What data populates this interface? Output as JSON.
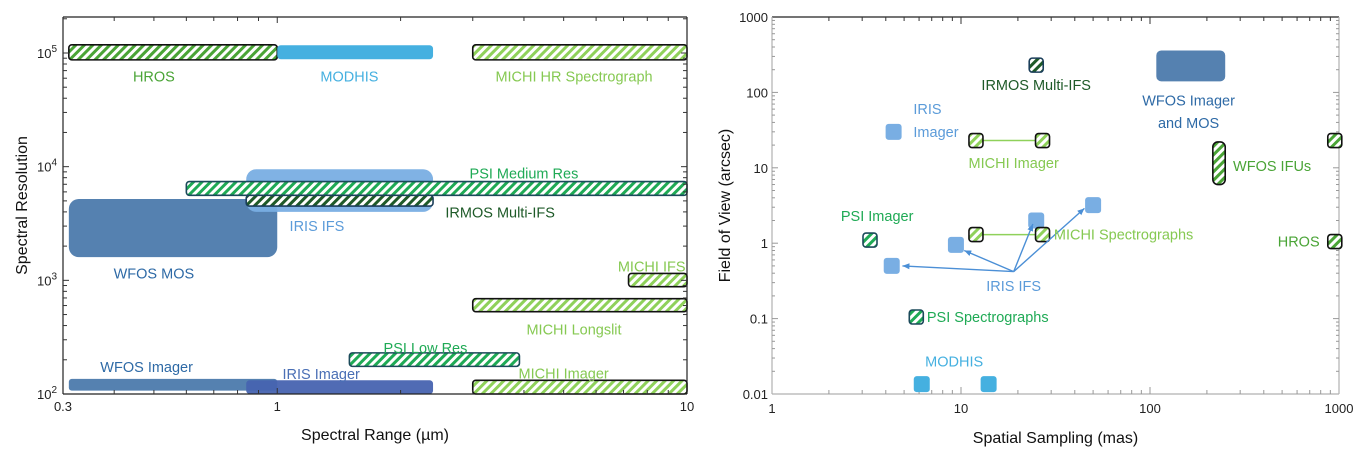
{
  "colors": {
    "wfos": "#5581b0",
    "wfos_text": "#2e6aa6",
    "iris": "#79aee3",
    "iris_text": "#5b9bd9",
    "iris_imager_bar": "#4763b0",
    "iris_imager_text": "#4a6fb5",
    "modhis": "#45b0e0",
    "hros": "#4aa436",
    "michi": "#8fd15a",
    "michi_text": "#86c952",
    "psi": "#1faa55",
    "psi_text": "#1faa55",
    "irmos": "#1e5a28",
    "irmos_text": "#1e5a28",
    "iris_arrow": "#4b8fd6"
  },
  "chart_data": [
    {
      "id": "left",
      "type": "range-bar",
      "title": "",
      "xlabel": "Spectral Range (µm)",
      "ylabel": "Spectral Resolution",
      "xscale": "log",
      "yscale": "log",
      "xlim": [
        0.3,
        10
      ],
      "ylim": [
        100,
        210000
      ],
      "grid": false,
      "x_ticks": [
        {
          "value": 0.3,
          "label": "0.3"
        },
        {
          "value": 1,
          "label": "1"
        },
        {
          "value": 10,
          "label": "10"
        }
      ],
      "y_ticks": [
        {
          "value": 100,
          "base": "10",
          "exp": "2"
        },
        {
          "value": 1000,
          "base": "10",
          "exp": "3"
        },
        {
          "value": 10000,
          "base": "10",
          "exp": "4"
        },
        {
          "value": 100000,
          "base": "10",
          "exp": "5"
        }
      ],
      "bars": [
        {
          "name": "WFOS MOS",
          "x": [
            0.31,
            1.0
          ],
          "y": [
            1600,
            5200
          ],
          "style": "solid",
          "color": "wfos",
          "label": "WFOS MOS",
          "label_color": "wfos_text",
          "label_at": [
            0.5,
            1150
          ]
        },
        {
          "name": "IRIS IFS",
          "x": [
            0.84,
            2.4
          ],
          "y": [
            4000,
            9500
          ],
          "style": "solid",
          "color": "iris",
          "opacity": 0.95,
          "label": "IRIS IFS",
          "label_color": "iris_text",
          "label_at": [
            1.25,
            3000
          ]
        },
        {
          "name": "PSI Medium Res",
          "x": [
            0.6,
            10
          ],
          "y": [
            5600,
            7400
          ],
          "style": "hatch",
          "color": "psi",
          "border": "#1b4a5a",
          "label": "PSI Medium Res",
          "label_color": "psi_text",
          "label_at": [
            4.0,
            8700
          ]
        },
        {
          "name": "IRMOS Multi-IFS",
          "x": [
            0.84,
            2.4
          ],
          "y": [
            4500,
            5600
          ],
          "style": "hatch",
          "color": "irmos",
          "border": "#1b3e5a",
          "label": "IRMOS Multi-IFS",
          "label_color": "irmos_text",
          "label_at": [
            3.5,
            3950
          ]
        },
        {
          "name": "HROS",
          "x": [
            0.31,
            1.0
          ],
          "y": [
            87000,
            118000
          ],
          "style": "hatch",
          "color": "hros",
          "border": "#111",
          "label": "HROS",
          "label_color": "hros",
          "label_at": [
            0.5,
            62000
          ]
        },
        {
          "name": "MODHIS",
          "x": [
            1.0,
            2.4
          ],
          "y": [
            88000,
            117000
          ],
          "style": "solid",
          "color": "modhis",
          "label": "MODHIS",
          "label_color": "modhis",
          "label_at": [
            1.5,
            62000
          ]
        },
        {
          "name": "MICHI HR Spectrograph",
          "x": [
            3.0,
            10
          ],
          "y": [
            87000,
            118000
          ],
          "style": "hatch",
          "color": "michi",
          "border": "#111",
          "label": "MICHI HR Spectrograph",
          "label_color": "michi_text",
          "label_at": [
            5.3,
            62000
          ]
        },
        {
          "name": "MICHI IFS",
          "x": [
            7.2,
            10
          ],
          "y": [
            880,
            1150
          ],
          "style": "hatch",
          "color": "michi",
          "border": "#111",
          "label": "MICHI IFS",
          "label_color": "michi_text",
          "label_at": [
            8.2,
            1330
          ]
        },
        {
          "name": "MICHI Longslit",
          "x": [
            3.0,
            10
          ],
          "y": [
            530,
            690
          ],
          "style": "hatch",
          "color": "michi",
          "border": "#111",
          "label": "MICHI Longslit",
          "label_color": "michi_text",
          "label_at": [
            5.3,
            370
          ]
        },
        {
          "name": "PSI Low Res",
          "x": [
            1.5,
            3.9
          ],
          "y": [
            175,
            230
          ],
          "style": "hatch",
          "color": "psi",
          "border": "#1b4a5a",
          "label": "PSI Low Res",
          "label_color": "psi_text",
          "label_at": [
            2.3,
            255
          ]
        },
        {
          "name": "MICHI Imager",
          "x": [
            3.0,
            10
          ],
          "y": [
            100,
            132
          ],
          "style": "hatch",
          "color": "michi",
          "border": "#111",
          "label": "MICHI Imager",
          "label_color": "michi_text",
          "label_at": [
            5.0,
            152
          ]
        },
        {
          "name": "WFOS Imager",
          "x": [
            0.31,
            1.0
          ],
          "y": [
            107,
            136
          ],
          "style": "solid",
          "color": "wfos",
          "label": "WFOS Imager",
          "label_color": "wfos_text",
          "label_at": [
            0.48,
            172
          ]
        },
        {
          "name": "IRIS Imager",
          "x": [
            0.84,
            2.4
          ],
          "y": [
            100,
            132
          ],
          "style": "solid",
          "color": "iris_imager_bar",
          "opacity": 0.95,
          "label": "IRIS Imager",
          "label_color": "iris_imager_text",
          "label_at": [
            1.28,
            150
          ]
        }
      ]
    },
    {
      "id": "right",
      "type": "scatter",
      "title": "",
      "xlabel": "Spatial Sampling (mas)",
      "ylabel": "Field of View (arcsec)",
      "xscale": "log",
      "yscale": "log",
      "xlim": [
        1,
        1000
      ],
      "ylim": [
        0.01,
        1000
      ],
      "grid": false,
      "x_ticks": [
        {
          "value": 1,
          "label": "1"
        },
        {
          "value": 10,
          "label": "10"
        },
        {
          "value": 100,
          "label": "100"
        },
        {
          "value": 1000,
          "label": "1000"
        }
      ],
      "y_ticks": [
        {
          "value": 0.01,
          "label": "0.01"
        },
        {
          "value": 0.1,
          "label": "0.1"
        },
        {
          "value": 1,
          "label": "1"
        },
        {
          "value": 10,
          "label": "10"
        },
        {
          "value": 100,
          "label": "100"
        },
        {
          "value": 1000,
          "label": "1000"
        }
      ],
      "points": [
        {
          "name": "IRIS Imager",
          "x": 4.4,
          "y": 30,
          "style": "solid",
          "color": "iris"
        },
        {
          "name": "IRIS IFS 1",
          "x": 4.3,
          "y": 0.5,
          "style": "solid",
          "color": "iris"
        },
        {
          "name": "IRIS IFS 2",
          "x": 9.4,
          "y": 0.95,
          "style": "solid",
          "color": "iris"
        },
        {
          "name": "IRIS IFS 3",
          "x": 25,
          "y": 2.0,
          "style": "solid",
          "color": "iris"
        },
        {
          "name": "IRIS IFS 4",
          "x": 50,
          "y": 3.2,
          "style": "solid",
          "color": "iris"
        },
        {
          "name": "MODHIS 1",
          "x": 6.2,
          "y": 0.0135,
          "style": "solid",
          "color": "modhis"
        },
        {
          "name": "MODHIS 2",
          "x": 14,
          "y": 0.0135,
          "style": "solid",
          "color": "modhis"
        },
        {
          "name": "PSI Imager",
          "x": 3.3,
          "y": 1.1,
          "style": "hatch",
          "color": "psi",
          "border": "#1b4a5a"
        },
        {
          "name": "PSI Spectrographs",
          "x": 5.8,
          "y": 0.105,
          "style": "hatch",
          "color": "psi",
          "border": "#1b4a5a"
        },
        {
          "name": "MICHI Imager 1",
          "x": 12,
          "y": 23,
          "style": "hatch",
          "color": "michi",
          "border": "#111"
        },
        {
          "name": "MICHI Imager 2",
          "x": 27,
          "y": 23,
          "style": "hatch",
          "color": "michi",
          "border": "#111"
        },
        {
          "name": "MICHI Spectrographs 1",
          "x": 12,
          "y": 1.3,
          "style": "hatch",
          "color": "michi",
          "border": "#111"
        },
        {
          "name": "MICHI Spectrographs 2",
          "x": 27,
          "y": 1.3,
          "style": "hatch",
          "color": "michi",
          "border": "#111"
        },
        {
          "name": "IRMOS Multi-IFS",
          "x": 25,
          "y": 230,
          "style": "hatch",
          "color": "irmos",
          "border": "#1b3e5a"
        },
        {
          "name": "WFOS IFUs 2",
          "x": 950,
          "y": 23,
          "style": "hatch",
          "color": "hros",
          "border": "#111"
        },
        {
          "name": "HROS",
          "x": 950,
          "y": 1.05,
          "style": "hatch",
          "color": "hros",
          "border": "#111"
        }
      ],
      "regions": [
        {
          "name": "WFOS Imager and MOS",
          "x": [
            108,
            250
          ],
          "y": [
            140,
            360
          ],
          "style": "solid",
          "color": "wfos"
        },
        {
          "name": "WFOS IFUs",
          "x": [
            215,
            250
          ],
          "y": [
            6,
            22
          ],
          "style": "hatch",
          "color": "hros",
          "border": "#111"
        }
      ],
      "lines": [
        {
          "name": "MICHI Imager link",
          "from": [
            12,
            23
          ],
          "to": [
            27,
            23
          ],
          "color": "michi"
        },
        {
          "name": "MICHI Spectrographs link",
          "from": [
            12,
            1.3
          ],
          "to": [
            27,
            1.3
          ],
          "color": "michi"
        }
      ],
      "arrows": [
        {
          "name": "IRIS IFS arrow 1",
          "from": [
            19,
            0.42
          ],
          "to": [
            4.9,
            0.5
          ],
          "color": "iris_arrow"
        },
        {
          "name": "IRIS IFS arrow 2",
          "from": [
            19,
            0.42
          ],
          "to": [
            10.4,
            0.8
          ],
          "color": "iris_arrow"
        },
        {
          "name": "IRIS IFS arrow 3",
          "from": [
            19,
            0.42
          ],
          "to": [
            24,
            1.8
          ],
          "color": "iris_arrow"
        },
        {
          "name": "IRIS IFS arrow 4",
          "from": [
            19,
            0.42
          ],
          "to": [
            45,
            2.9
          ],
          "color": "iris_arrow"
        }
      ],
      "annotations": [
        {
          "text": "IRMOS Multi-IFS",
          "x": 25,
          "y": 125,
          "anchor": "middle",
          "color": "irmos_text"
        },
        {
          "text": "IRIS",
          "x": 5.6,
          "y": 60,
          "anchor": "start",
          "color": "iris_text"
        },
        {
          "text": "Imager",
          "x": 5.6,
          "y": 30,
          "anchor": "start",
          "color": "iris_text"
        },
        {
          "text": "MICHI Imager",
          "x": 19,
          "y": 11.5,
          "anchor": "middle",
          "color": "michi_text"
        },
        {
          "text": "WFOS Imager",
          "x": 160,
          "y": 78,
          "anchor": "middle",
          "color": "wfos_text"
        },
        {
          "text": "and MOS",
          "x": 160,
          "y": 39,
          "anchor": "middle",
          "color": "wfos_text"
        },
        {
          "text": "WFOS IFUs",
          "x": 275,
          "y": 10.5,
          "anchor": "start",
          "color": "hros"
        },
        {
          "text": "PSI Imager",
          "x": 3.6,
          "y": 2.3,
          "anchor": "middle",
          "color": "psi_text"
        },
        {
          "text": "MICHI Spectrographs",
          "x": 31,
          "y": 1.3,
          "anchor": "start",
          "color": "michi_text"
        },
        {
          "text": "HROS",
          "x": 790,
          "y": 1.05,
          "anchor": "end",
          "color": "hros"
        },
        {
          "text": "IRIS IFS",
          "x": 19,
          "y": 0.27,
          "anchor": "middle",
          "color": "iris_text"
        },
        {
          "text": "PSI Spectrographs",
          "x": 6.6,
          "y": 0.105,
          "anchor": "start",
          "color": "psi_text"
        },
        {
          "text": "MODHIS",
          "x": 9.2,
          "y": 0.027,
          "anchor": "middle",
          "color": "modhis"
        }
      ]
    }
  ]
}
